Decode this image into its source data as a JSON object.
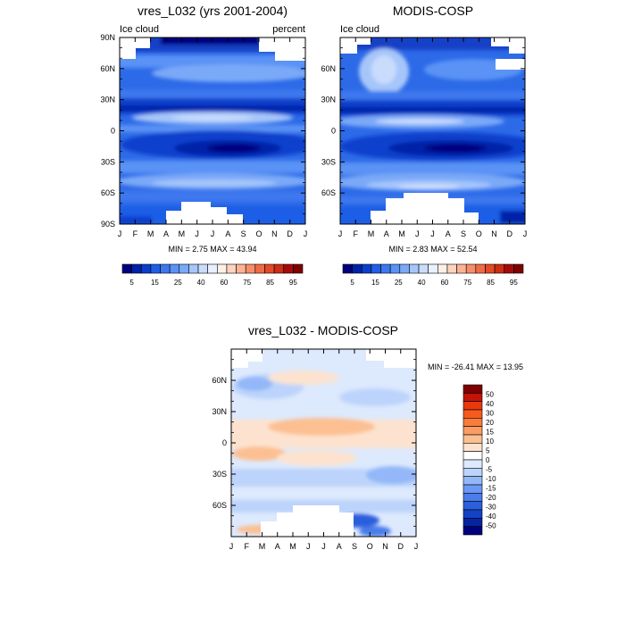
{
  "chart_data": [
    {
      "type": "heatmap",
      "title": "vres_L032 (yrs 2001-2004)",
      "left_label": "Ice cloud",
      "right_label": "percent",
      "stats": {
        "min": "2.75",
        "max": "43.94"
      },
      "x_tick_labels": [
        "J",
        "F",
        "M",
        "A",
        "M",
        "J",
        "J",
        "A",
        "S",
        "O",
        "N",
        "D",
        "J"
      ],
      "y_tick_labels": [
        "90N",
        "60N",
        "30N",
        "0",
        "30S",
        "60S",
        "90S"
      ],
      "y_ticks": [
        90,
        60,
        30,
        0,
        -30,
        -60,
        -90
      ],
      "xlim": [
        0,
        12
      ],
      "ylim": [
        -90,
        90
      ],
      "colorbar": {
        "colors": [
          "#00007f",
          "#0022a8",
          "#0a3fcc",
          "#1f5fe6",
          "#3c78ee",
          "#5a93f5",
          "#7aa9f8",
          "#a6c6fa",
          "#cadcfc",
          "#e9f1fe",
          "#fff0e6",
          "#fdd3bf",
          "#fbb394",
          "#f78e69",
          "#f06b45",
          "#e34a26",
          "#cc2e12",
          "#a50a0a",
          "#7f0000"
        ],
        "labels": [
          "5",
          "15",
          "25",
          "40",
          "60",
          "75",
          "85",
          "95"
        ]
      }
    },
    {
      "type": "heatmap",
      "title": "MODIS-COSP",
      "left_label": "Ice cloud",
      "stats": {
        "min": "2.83",
        "max": "52.54"
      },
      "x_tick_labels": [
        "J",
        "F",
        "M",
        "A",
        "M",
        "J",
        "J",
        "A",
        "S",
        "O",
        "N",
        "D",
        "J"
      ],
      "y_tick_labels": [
        "60N",
        "30N",
        "0",
        "30S",
        "60S"
      ],
      "y_ticks": [
        60,
        30,
        0,
        -30,
        -60
      ],
      "xlim": [
        0,
        12
      ],
      "ylim": [
        -90,
        90
      ],
      "colorbar": {
        "colors": [
          "#00007f",
          "#0022a8",
          "#0a3fcc",
          "#1f5fe6",
          "#3c78ee",
          "#5a93f5",
          "#7aa9f8",
          "#a6c6fa",
          "#cadcfc",
          "#e9f1fe",
          "#fff0e6",
          "#fdd3bf",
          "#fbb394",
          "#f78e69",
          "#f06b45",
          "#e34a26",
          "#cc2e12",
          "#a50a0a",
          "#7f0000"
        ],
        "labels": [
          "5",
          "15",
          "25",
          "40",
          "60",
          "75",
          "85",
          "95"
        ]
      }
    },
    {
      "type": "heatmap",
      "title": "vres_L032 - MODIS-COSP",
      "stats": {
        "min": "-26.41",
        "max": "13.95"
      },
      "x_tick_labels": [
        "J",
        "F",
        "M",
        "A",
        "M",
        "J",
        "J",
        "A",
        "S",
        "O",
        "N",
        "D",
        "J"
      ],
      "y_tick_labels": [
        "60N",
        "30N",
        "0",
        "30S",
        "60S"
      ],
      "y_ticks": [
        60,
        30,
        0,
        -30,
        -60
      ],
      "xlim": [
        0,
        12
      ],
      "ylim": [
        -90,
        90
      ],
      "colorbar": {
        "colors": [
          "#7f0000",
          "#c21408",
          "#e8380c",
          "#f65a1e",
          "#f87c3d",
          "#fa9c63",
          "#fcbf92",
          "#fde3cf",
          "#ffffff",
          "#dde9fd",
          "#bcd4fb",
          "#93b7f8",
          "#6b98f4",
          "#4a7ceb",
          "#2b5fdc",
          "#1442c4",
          "#0525a0",
          "#00007f"
        ],
        "labels": [
          "50",
          "40",
          "30",
          "20",
          "15",
          "10",
          "5",
          "0",
          "-5",
          "-10",
          "-15",
          "-20",
          "-30",
          "-40",
          "-50"
        ]
      }
    }
  ]
}
